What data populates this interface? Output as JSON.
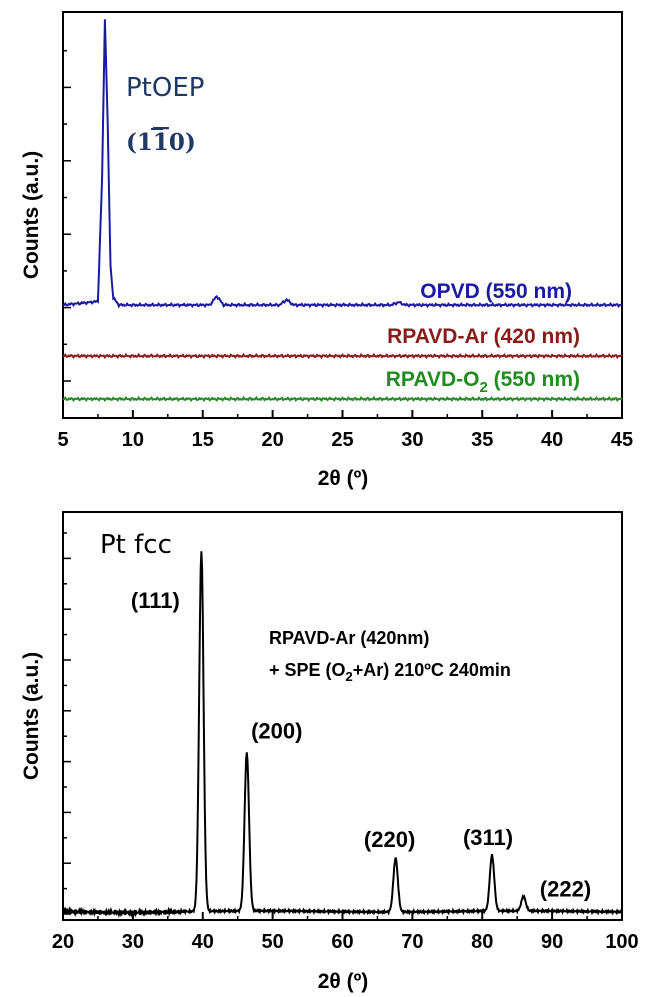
{
  "chart_data": [
    {
      "type": "line",
      "xlabel_symbol": "2θ",
      "xlabel_unit": "(º)",
      "ylabel": "Counts (a.u.)",
      "xlim": [
        5,
        45
      ],
      "x_ticks": [
        5,
        10,
        15,
        20,
        25,
        30,
        35,
        40,
        45
      ],
      "grid": false,
      "annotations": [
        {
          "text": "PtOEP",
          "color": "#1f3864"
        },
        {
          "text_open": "(",
          "text_a": "1",
          "text_b": "1",
          "text_c": "0",
          "text_close": ")",
          "color": "#1f3864"
        }
      ],
      "series": [
        {
          "label": "OPVD (550 nm)",
          "color": "#1a1aa0",
          "baseline": 0.19,
          "x": [
            5,
            7.5,
            7.8,
            8.0,
            8.2,
            8.4,
            8.6,
            9.0,
            15.5,
            16.0,
            16.5,
            20.5,
            21.0,
            21.5,
            28.5,
            29.0,
            29.5,
            45
          ],
          "y": [
            0.19,
            0.2,
            0.55,
            1.0,
            0.7,
            0.3,
            0.21,
            0.19,
            0.19,
            0.215,
            0.19,
            0.19,
            0.205,
            0.19,
            0.19,
            0.198,
            0.19,
            0.19
          ]
        },
        {
          "label": "RPAVD-Ar (420 nm)",
          "color": "#8b1a1a",
          "baseline": 0.072,
          "x": [
            5,
            45
          ],
          "y": [
            0.072,
            0.072
          ]
        },
        {
          "label_main": "RPAVD-O",
          "label_sub": "2",
          "label_tail": " (550 nm)",
          "color": "#228b22",
          "baseline": 0.0,
          "x": [
            5,
            45
          ],
          "y": [
            0.0,
            0.0
          ]
        }
      ]
    },
    {
      "type": "line",
      "title_note": "Pt fcc",
      "xlabel_symbol": "2θ",
      "xlabel_unit": "(º)",
      "ylabel": "Counts (a.u.)",
      "xlim": [
        20,
        100
      ],
      "x_ticks": [
        20,
        30,
        40,
        50,
        60,
        70,
        80,
        90,
        100
      ],
      "grid": false,
      "annotation_lines": [
        {
          "text": "RPAVD-Ar (420nm)"
        },
        {
          "text_a": "+ SPE (O",
          "sub": "2",
          "text_b": "+Ar) 210ºC 240min"
        }
      ],
      "peaks": [
        {
          "label": "(111)",
          "x": 39.8,
          "height": 1.0
        },
        {
          "label": "(200)",
          "x": 46.3,
          "height": 0.44
        },
        {
          "label": "(220)",
          "x": 67.6,
          "height": 0.15
        },
        {
          "label": "(311)",
          "x": 81.4,
          "height": 0.155
        },
        {
          "label": "(222)",
          "x": 85.9,
          "height": 0.04
        }
      ],
      "series": [
        {
          "color": "#000000",
          "x": [
            20,
            39,
            39.8,
            40.6,
            45.6,
            46.3,
            47.0,
            67.0,
            67.6,
            68.2,
            80.8,
            81.4,
            82.0,
            85.4,
            85.9,
            86.4,
            100
          ],
          "y": [
            0.01,
            0.02,
            1.0,
            0.03,
            0.02,
            0.44,
            0.02,
            0.01,
            0.15,
            0.01,
            0.01,
            0.155,
            0.01,
            0.01,
            0.04,
            0.01,
            0.01
          ]
        }
      ]
    }
  ]
}
